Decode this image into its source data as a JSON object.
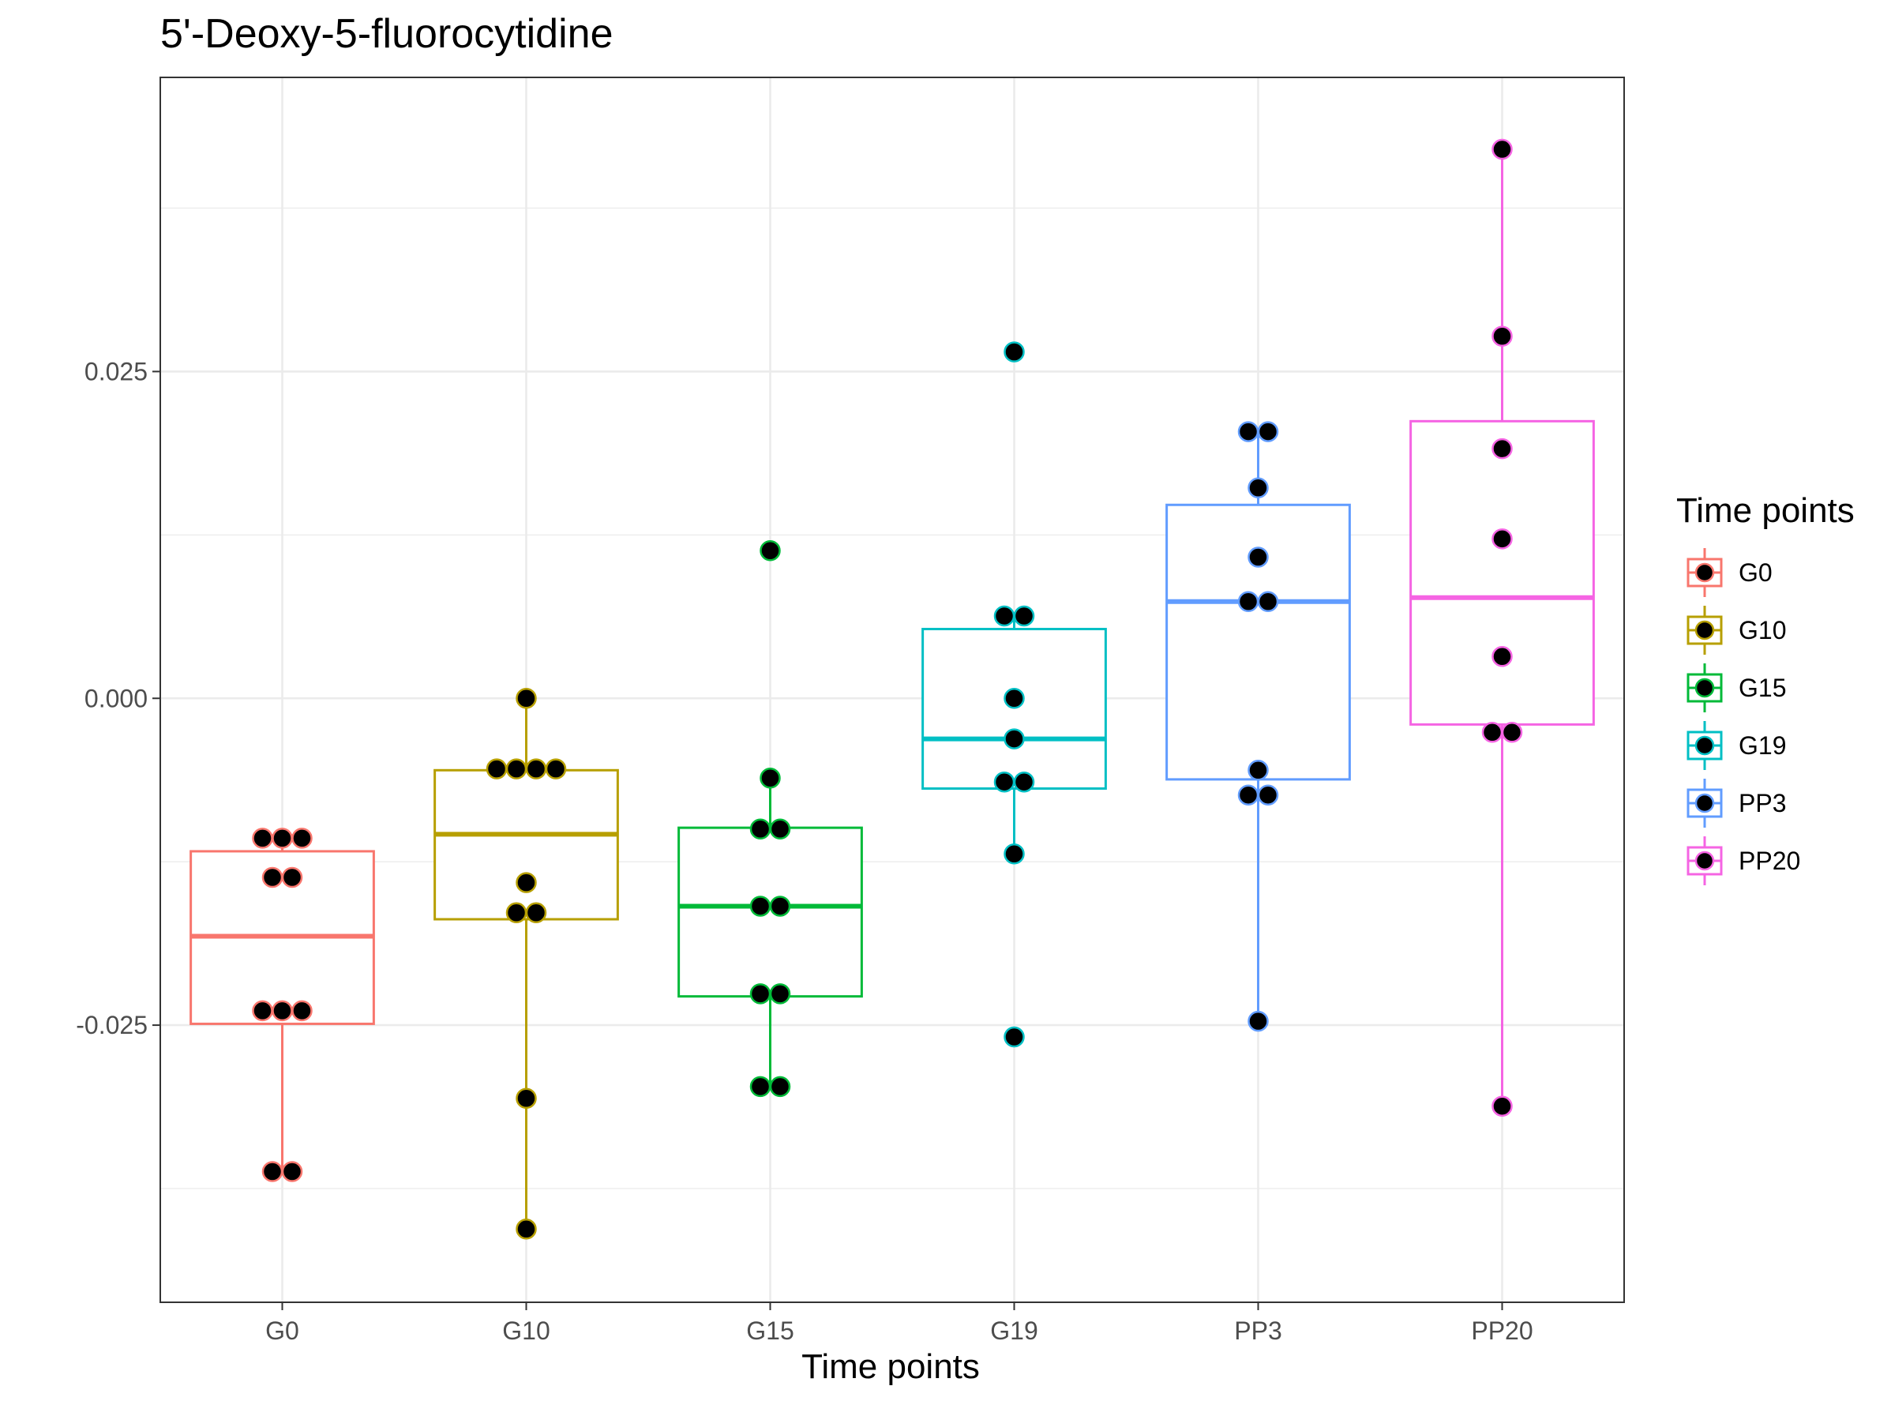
{
  "chart_data": {
    "type": "boxplot",
    "title": "5'-Deoxy-5-fluorocytidine",
    "xlabel": "Time points",
    "ylabel": "",
    "ylim": [
      -0.0462,
      0.0475
    ],
    "yticks": [
      -0.025,
      0.0,
      0.025
    ],
    "ytick_labels": [
      "-0.025",
      "0.000",
      "0.025"
    ],
    "grid": true,
    "legend": {
      "title": "Time points",
      "position": "right"
    },
    "categories": [
      "G0",
      "G10",
      "G15",
      "G19",
      "PP3",
      "PP20"
    ],
    "series": [
      {
        "name": "G0",
        "color": "#F8766D",
        "box": {
          "q1": -0.0249,
          "median": -0.0182,
          "q3": -0.0117,
          "whisker_low": -0.0362,
          "whisker_high": -0.0107
        },
        "points": [
          -0.0107,
          -0.0107,
          -0.0107,
          -0.0137,
          -0.0137,
          -0.0239,
          -0.0239,
          -0.0239,
          -0.0362,
          -0.0362
        ]
      },
      {
        "name": "G10",
        "color": "#B79F00",
        "box": {
          "q1": -0.0169,
          "median": -0.0104,
          "q3": -0.0055,
          "whisker_low": -0.0406,
          "whisker_high": 0.0
        },
        "points": [
          0.0,
          -0.0054,
          -0.0054,
          -0.0054,
          -0.0054,
          -0.0141,
          -0.0164,
          -0.0164,
          -0.0306,
          -0.0406
        ]
      },
      {
        "name": "G15",
        "color": "#00BA38",
        "box": {
          "q1": -0.0228,
          "median": -0.0159,
          "q3": -0.0099,
          "whisker_low": -0.0297,
          "whisker_high": -0.0061
        },
        "points": [
          0.0113,
          -0.0061,
          -0.01,
          -0.01,
          -0.0159,
          -0.0159,
          -0.0226,
          -0.0226,
          -0.0297,
          -0.0297
        ]
      },
      {
        "name": "G19",
        "color": "#00BFC4",
        "box": {
          "q1": -0.0069,
          "median": -0.0031,
          "q3": 0.0053,
          "whisker_low": -0.0119,
          "whisker_high": 0.0063
        },
        "points": [
          0.0265,
          0.0063,
          0.0063,
          0.0,
          -0.0031,
          -0.0064,
          -0.0064,
          -0.0119,
          -0.0259
        ]
      },
      {
        "name": "PP3",
        "color": "#619CFF",
        "box": {
          "q1": -0.0062,
          "median": 0.0074,
          "q3": 0.0148,
          "whisker_low": -0.0247,
          "whisker_high": 0.0204
        },
        "points": [
          0.0204,
          0.0204,
          0.0161,
          0.0108,
          0.0074,
          0.0074,
          -0.0055,
          -0.0074,
          -0.0074,
          -0.0247
        ]
      },
      {
        "name": "PP20",
        "color": "#F564E3",
        "box": {
          "q1": -0.002,
          "median": 0.0077,
          "q3": 0.0212,
          "whisker_low": -0.0312,
          "whisker_high": 0.042
        },
        "points": [
          0.042,
          0.0277,
          0.0191,
          0.0122,
          0.0032,
          -0.0026,
          -0.0026,
          -0.0312
        ]
      }
    ]
  }
}
